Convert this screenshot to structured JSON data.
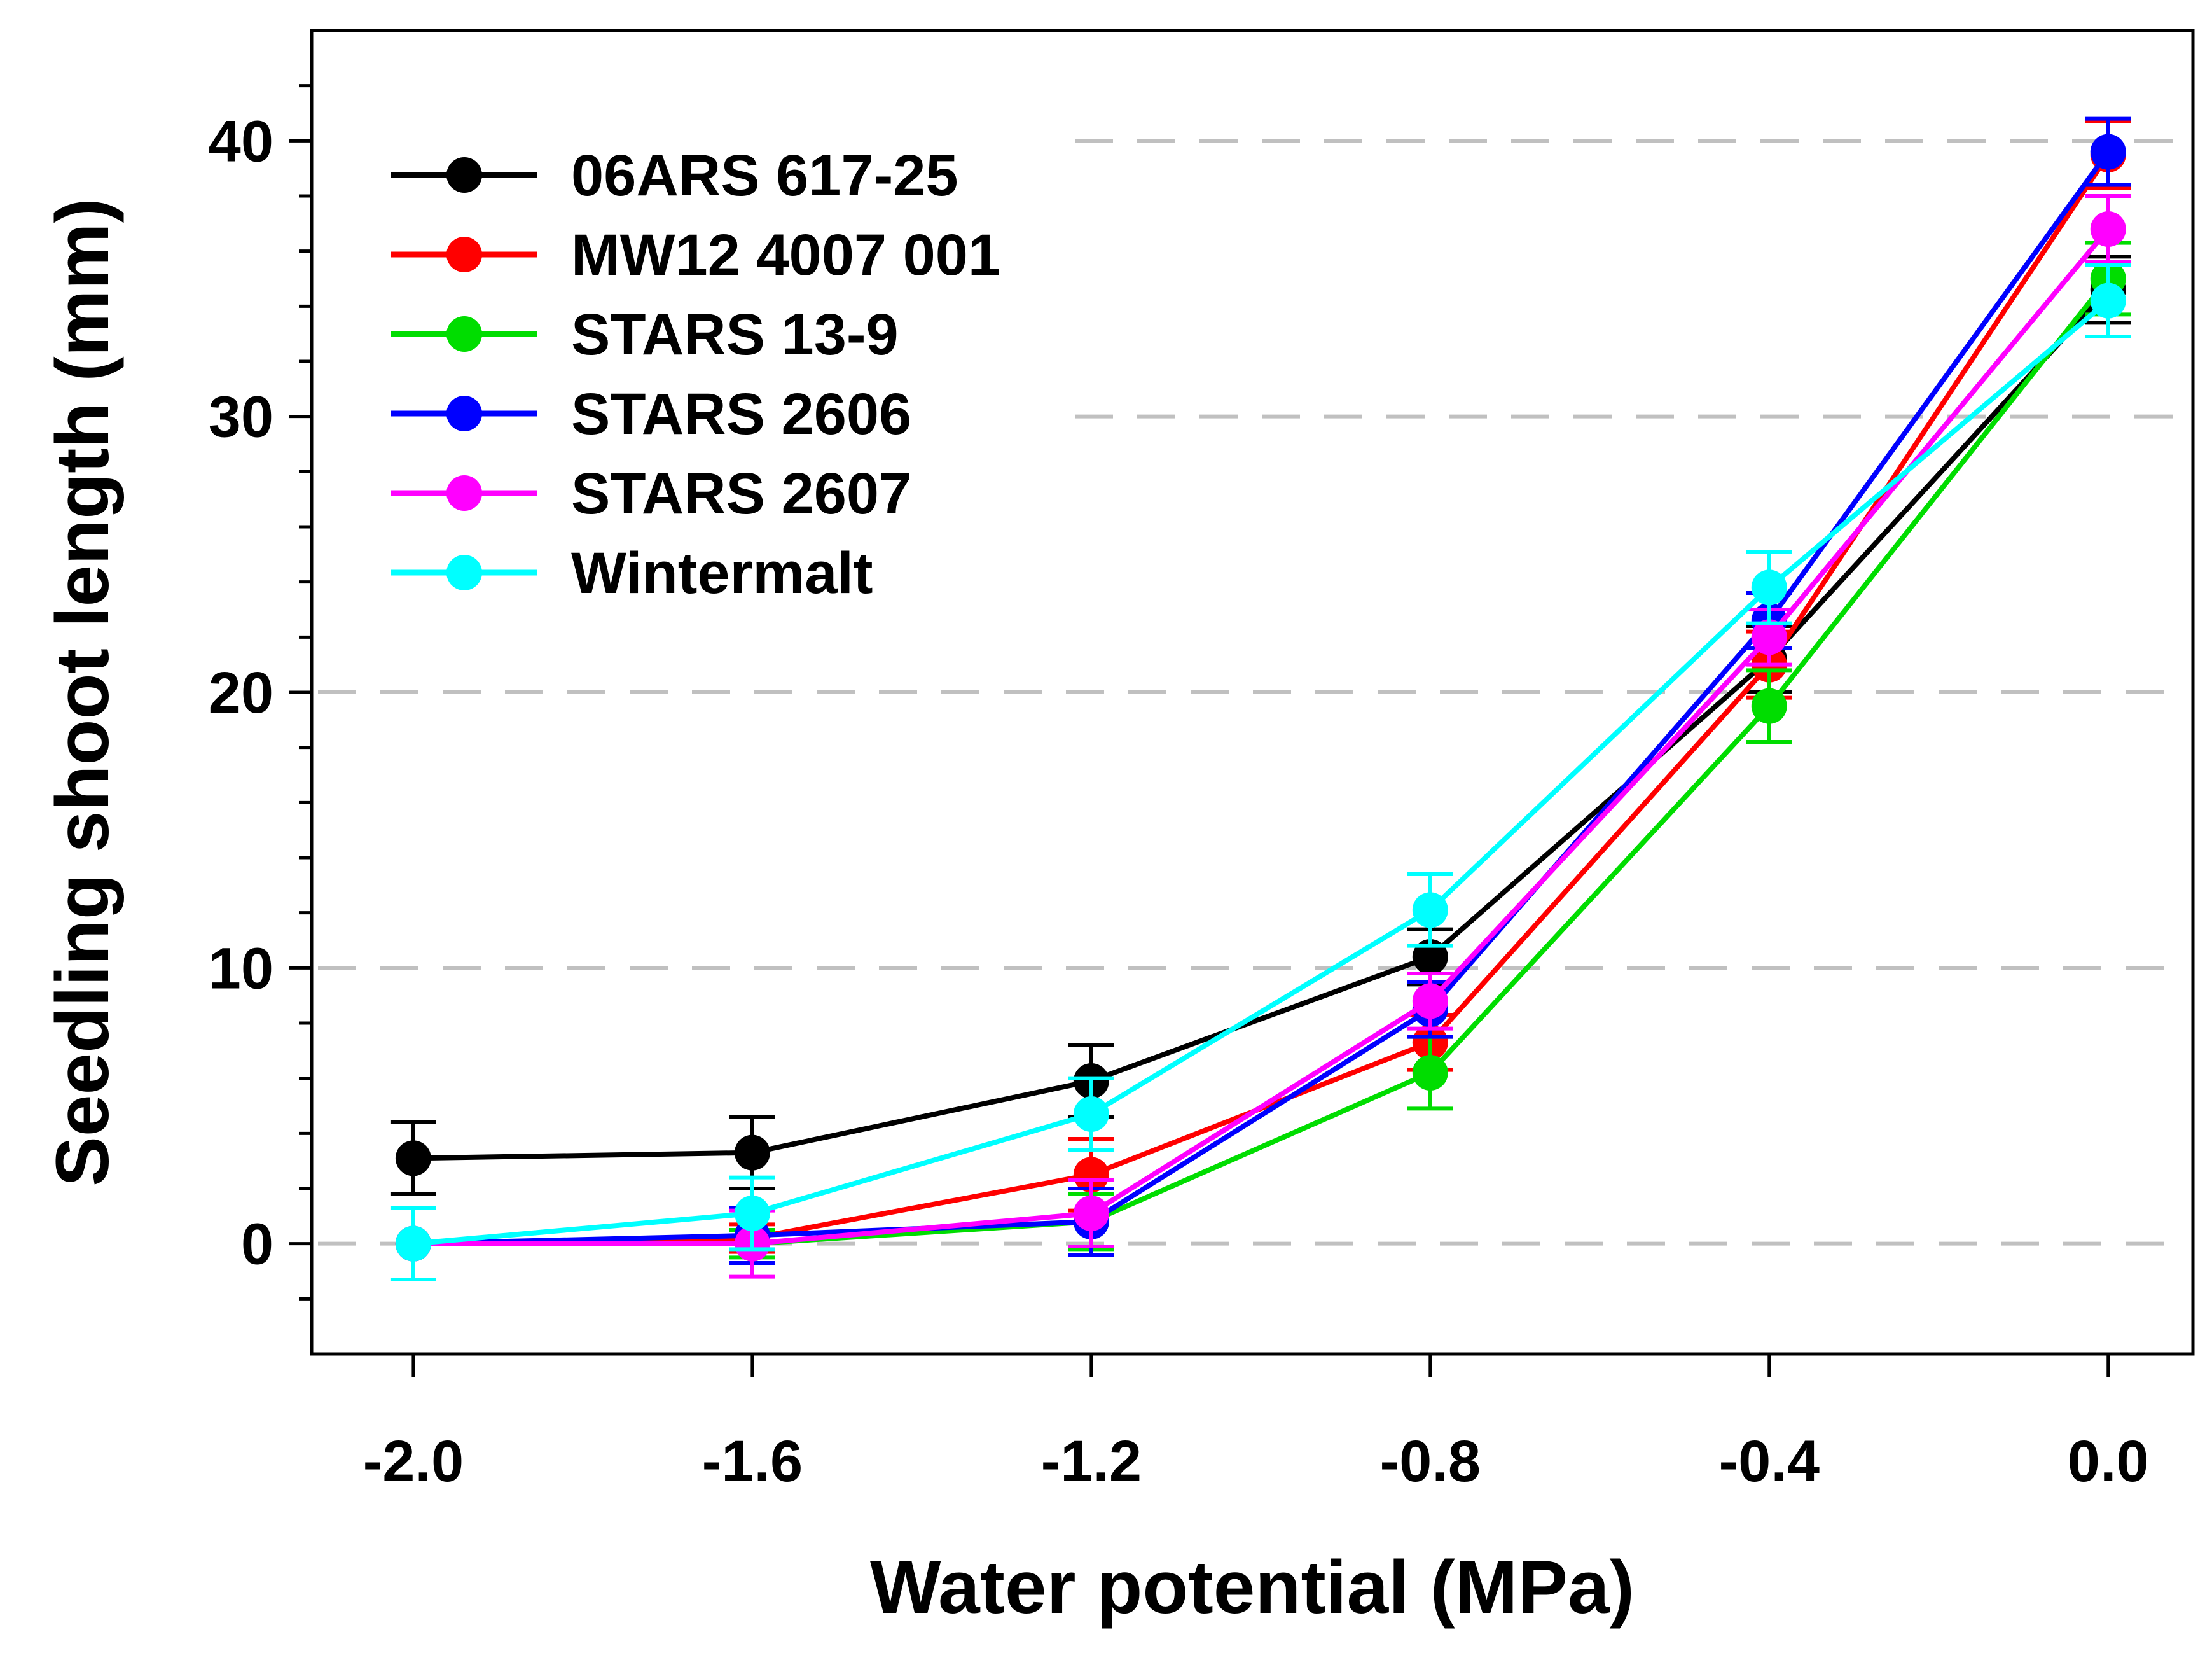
{
  "chart_data": {
    "type": "line",
    "title": "",
    "xlabel": "Water potential (MPa)",
    "ylabel": "Seedling shoot length (mm)",
    "x": [
      -2.0,
      -1.6,
      -1.2,
      -0.8,
      -0.4,
      0.0
    ],
    "x_tick_labels": [
      "-2.0",
      "-1.6",
      "-1.2",
      "-0.8",
      "-0.4",
      "0.0"
    ],
    "y_ticks": [
      0,
      10,
      20,
      30,
      40
    ],
    "y_tick_labels": [
      "0",
      "10",
      "20",
      "30",
      "40"
    ],
    "xlim": [
      -2.12,
      0.1
    ],
    "ylim": [
      -4,
      44
    ],
    "grid": "horizontal dashed",
    "legend_position": "top-left",
    "series": [
      {
        "name": "06ARS 617-25",
        "color": "#000000",
        "values": [
          3.1,
          3.3,
          5.9,
          10.4,
          21.2,
          34.6
        ],
        "errors": [
          1.3,
          1.3,
          1.3,
          1.0,
          1.2,
          1.2
        ]
      },
      {
        "name": "MW12 4007 001",
        "color": "#ff0000",
        "values": [
          0.0,
          0.2,
          2.5,
          7.3,
          21.0,
          39.5
        ],
        "errors": [
          0.0,
          0.5,
          1.3,
          1.0,
          1.2,
          1.2
        ]
      },
      {
        "name": "STARS 13-9",
        "color": "#00dd00",
        "values": [
          0.0,
          0.0,
          0.8,
          6.2,
          19.5,
          35.0
        ],
        "errors": [
          0.0,
          0.5,
          1.0,
          1.3,
          1.3,
          1.3
        ]
      },
      {
        "name": "STARS 2606",
        "color": "#0000ff",
        "values": [
          0.0,
          0.3,
          0.8,
          8.5,
          22.6,
          39.6
        ],
        "errors": [
          0.0,
          1.0,
          1.2,
          1.0,
          1.0,
          1.2
        ]
      },
      {
        "name": "STARS 2607",
        "color": "#ff00ff",
        "values": [
          0.0,
          0.0,
          1.1,
          8.8,
          22.0,
          36.8
        ],
        "errors": [
          0.0,
          1.2,
          1.2,
          1.0,
          1.0,
          1.2
        ]
      },
      {
        "name": "Wintermalt",
        "color": "#00ffff",
        "values": [
          0.0,
          1.1,
          4.7,
          12.1,
          23.8,
          34.2
        ],
        "errors": [
          1.3,
          1.3,
          1.3,
          1.3,
          1.3,
          1.3
        ]
      }
    ]
  }
}
